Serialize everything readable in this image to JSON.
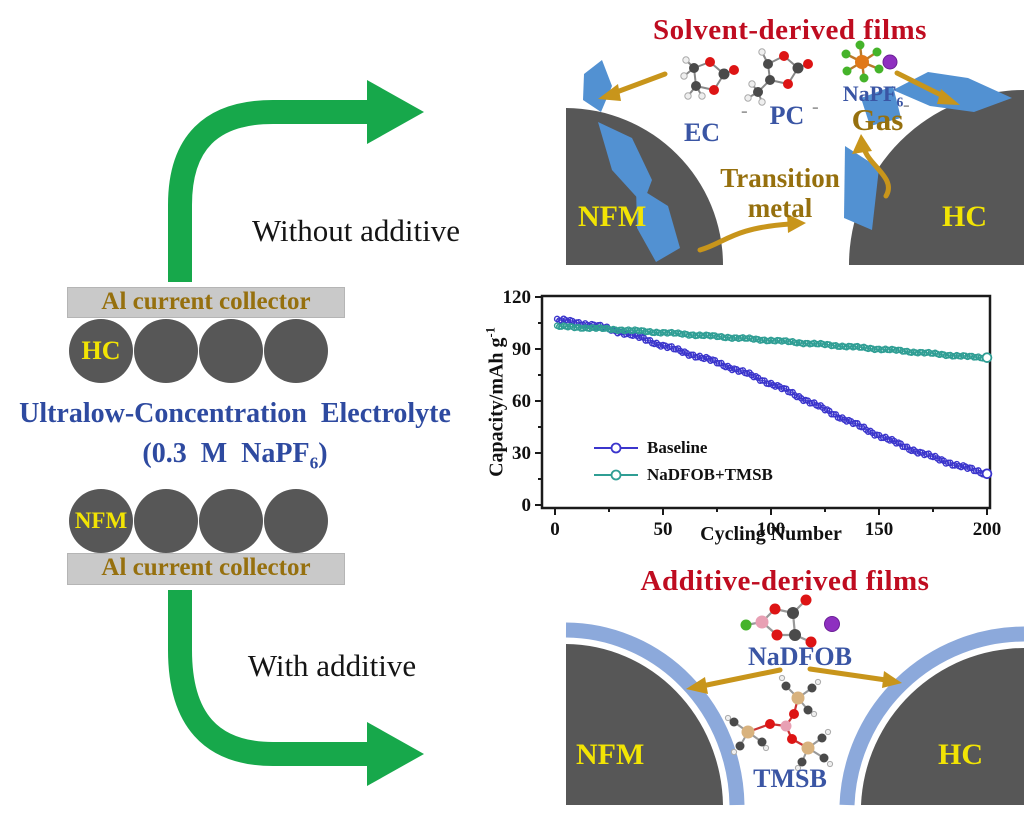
{
  "left_panel": {
    "without_additive": "Without additive",
    "with_additive": "With additive",
    "collector_top": "Al current collector",
    "collector_bottom": "Al current collector",
    "hc": "HC",
    "nfm": "NFM",
    "electrolyte_line1": "Ultralow-Concentration Electrolyte",
    "electrolyte_line2_main": "(0.3 M NaPF",
    "electrolyte_line2_sub": "6",
    "electrolyte_line2_end": ")"
  },
  "solvent_panel": {
    "title": "Solvent-derived films",
    "ec": "EC",
    "pc": "PC",
    "napf6_main": "NaPF",
    "napf6_sub": "6",
    "gas": "Gas",
    "transition_line1": "Transition",
    "transition_line2": "metal",
    "nfm": "NFM",
    "hc": "HC",
    "dash": "-"
  },
  "additive_panel": {
    "title": "Additive-derived films",
    "nadfob": "NaDFOB",
    "tmsb": "TMSB",
    "nfm": "NFM",
    "hc": "HC"
  },
  "chart_data": {
    "type": "scatter",
    "title": "",
    "xlabel": "Cycling Number",
    "ylabel": "Capacity/mAh g⁻¹",
    "ylabel_main": "Capacity/mAh g",
    "ylabel_sup": "-1",
    "xlim": [
      0,
      200
    ],
    "ylim": [
      0,
      120
    ],
    "xticks": [
      0,
      50,
      100,
      150,
      200
    ],
    "yticks": [
      0,
      30,
      60,
      90,
      120
    ],
    "xminor": [
      25,
      75,
      125,
      175
    ],
    "yminor": [
      15,
      45,
      75,
      105
    ],
    "grid": false,
    "legend_position": "inside lower-left",
    "series": [
      {
        "name": "Baseline",
        "color": "#3b35cc",
        "x": [
          1,
          5,
          10,
          15,
          20,
          25,
          30,
          35,
          40,
          45,
          50,
          55,
          60,
          65,
          70,
          75,
          80,
          85,
          90,
          95,
          100,
          105,
          110,
          115,
          120,
          125,
          130,
          135,
          140,
          145,
          150,
          155,
          160,
          165,
          170,
          175,
          180,
          185,
          190,
          195,
          200
        ],
        "y": [
          106.5,
          106.2,
          105.4,
          104.3,
          103.0,
          101.6,
          100.0,
          98.2,
          96.3,
          94.2,
          92.0,
          90.0,
          88.0,
          86.2,
          84.3,
          82.2,
          80.0,
          77.6,
          75.2,
          72.7,
          70.0,
          67.2,
          64.3,
          61.3,
          58.2,
          55.0,
          52.0,
          49.0,
          46.0,
          43.0,
          40.2,
          37.4,
          34.7,
          32.2,
          29.8,
          27.6,
          25.5,
          23.4,
          21.5,
          19.7,
          18.0
        ]
      },
      {
        "name": "NaDFOB+TMSB",
        "color": "#2f9e94",
        "x": [
          1,
          5,
          10,
          15,
          20,
          25,
          30,
          35,
          40,
          45,
          50,
          55,
          60,
          65,
          70,
          75,
          80,
          85,
          90,
          95,
          100,
          105,
          110,
          115,
          120,
          125,
          130,
          135,
          140,
          145,
          150,
          155,
          160,
          165,
          170,
          175,
          180,
          185,
          190,
          195,
          200
        ],
        "y": [
          103.0,
          102.8,
          102.5,
          102.2,
          101.9,
          101.5,
          101.1,
          100.7,
          100.3,
          99.9,
          99.5,
          99.0,
          98.6,
          98.1,
          97.7,
          97.2,
          96.8,
          96.3,
          95.9,
          95.4,
          95.0,
          94.5,
          94.0,
          93.5,
          93.0,
          92.5,
          92.0,
          91.5,
          91.0,
          90.5,
          90.0,
          89.5,
          89.0,
          88.4,
          87.9,
          87.3,
          86.8,
          86.2,
          85.7,
          85.3,
          85.0
        ]
      }
    ]
  },
  "colors": {
    "title_red": "#bf0c20",
    "label_blue": "#3a55a4",
    "olive_text": "#96700e",
    "gold_arrow": "#c8951b",
    "green_arrow": "#17a84b",
    "electrode_gray": "#575757",
    "collector_gray": "#c9c9c9",
    "electrode_label_yellow": "#f2e404",
    "film_blue": "#5291d2",
    "film_light_blue": "#8ca9db",
    "na_ion_purple": "#8e2fc0"
  }
}
